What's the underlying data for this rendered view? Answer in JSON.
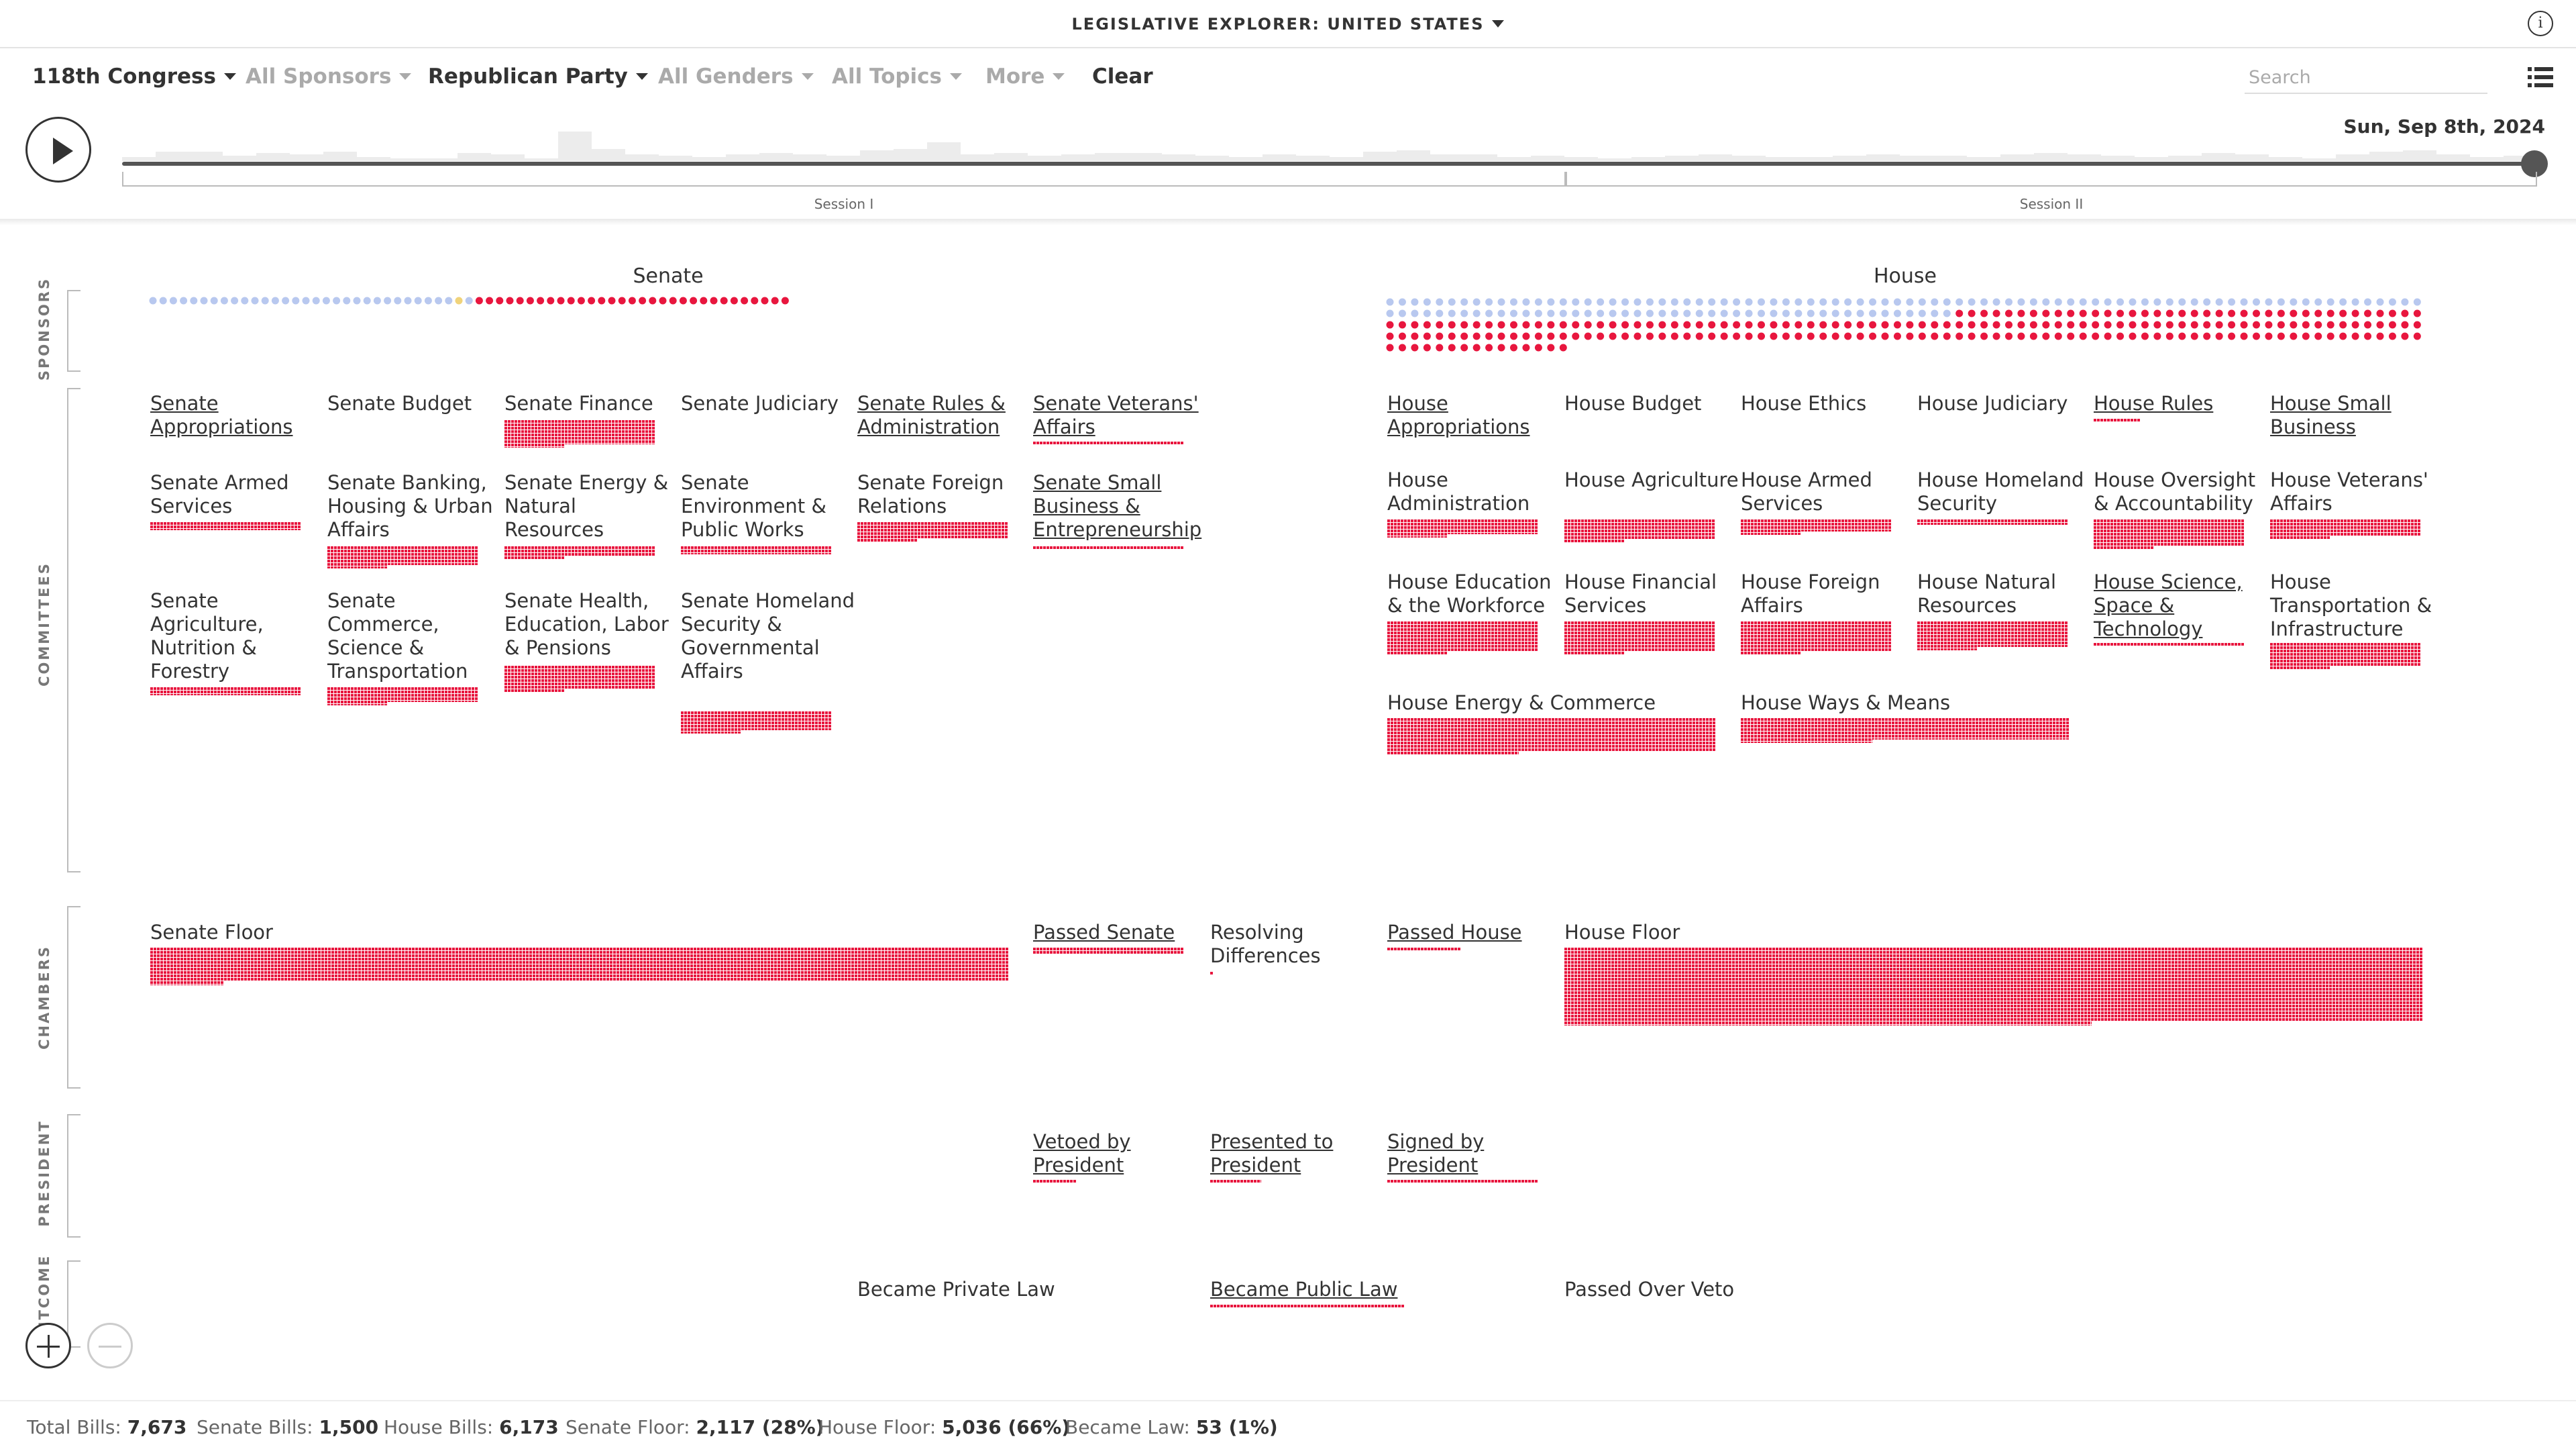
{
  "header": {
    "title": "LEGISLATIVE EXPLORER: UNITED STATES",
    "info_icon": "info-icon"
  },
  "filters": [
    {
      "label": "118th Congress",
      "state": "active"
    },
    {
      "label": "All Sponsors",
      "state": "muted"
    },
    {
      "label": "Republican Party",
      "state": "active"
    },
    {
      "label": "All Genders",
      "state": "muted"
    },
    {
      "label": "All Topics",
      "state": "muted"
    },
    {
      "label": "More",
      "state": "muted"
    }
  ],
  "clear_label": "Clear",
  "search": {
    "placeholder": "Search",
    "value": ""
  },
  "timeline": {
    "date": "Sun, Sep 8th, 2024",
    "sessions": [
      "Session I",
      "Session II"
    ],
    "progress": 1.0
  },
  "sections": {
    "sponsors": "SPONSORS",
    "committees": "COMMITTEES",
    "chambers": "CHAMBERS",
    "president": "PRESIDENT",
    "outcome": "OUTCOME"
  },
  "chambers": {
    "senate": "Senate",
    "house": "House"
  },
  "senate_committees": [
    "Senate Appropriations",
    "Senate Budget",
    "Senate Finance",
    "Senate Judiciary",
    "Senate Rules & Administration",
    "Senate Veterans' Affairs",
    "Senate Armed Services",
    "Senate Banking, Housing & Urban Affairs",
    "Senate Energy & Natural Resources",
    "Senate Environment & Public Works",
    "Senate Foreign Relations",
    "Senate Small Business & Entrepreneurship",
    "Senate Agriculture, Nutrition & Forestry",
    "Senate Commerce, Science & Transportation",
    "Senate Health, Education, Labor & Pensions",
    "Senate Homeland Security & Governmental Affairs"
  ],
  "house_committees": [
    "House Appropriations",
    "House Budget",
    "House Ethics",
    "House Judiciary",
    "House Rules",
    "House Small Business",
    "House Administration",
    "House Agriculture",
    "House Armed Services",
    "House Homeland Security",
    "House Oversight & Accountability",
    "House Veterans' Affairs",
    "House Education & the Workforce",
    "House Financial Services",
    "House Foreign Affairs",
    "House Natural Resources",
    "House Science, Space & Technology",
    "House Transportation & Infrastructure",
    "House Energy & Commerce",
    "House Ways & Means"
  ],
  "floor": {
    "senate_floor": "Senate Floor",
    "passed_senate": "Passed Senate",
    "resolving": "Resolving Differences",
    "passed_house": "Passed House",
    "house_floor": "House Floor"
  },
  "president": {
    "vetoed": "Vetoed by President",
    "presented": "Presented to President",
    "signed": "Signed by President"
  },
  "outcome": {
    "private_law": "Became Private Law",
    "public_law": "Became Public Law",
    "over_veto": "Passed Over Veto"
  },
  "stats": [
    {
      "label": "Total Bills:",
      "value": "7,673"
    },
    {
      "label": "Senate Bills:",
      "value": "1,500"
    },
    {
      "label": "House Bills:",
      "value": "6,173"
    },
    {
      "label": "Senate Floor:",
      "value": "2,117 (28%)"
    },
    {
      "label": "House Floor:",
      "value": "5,036 (66%)"
    },
    {
      "label": "Became Law:",
      "value": "53 (1%)"
    }
  ],
  "colors": {
    "republican": "#e8163e",
    "democrat": "#b8c8ef",
    "independent": "#f0d37a"
  }
}
